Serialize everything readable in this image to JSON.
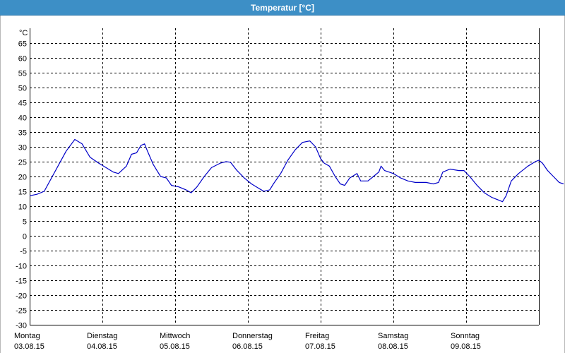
{
  "window": {
    "title": "Temperatur [°C]"
  },
  "colors": {
    "titlebar": "#3d8fc6",
    "line": "#0000c8",
    "grid": "#000000"
  },
  "chart_data": {
    "type": "line",
    "title": "Temperatur [°C]",
    "ylabel": "°C",
    "ylim": [
      -30,
      70
    ],
    "yticks": [
      65,
      60,
      55,
      50,
      45,
      40,
      35,
      30,
      25,
      20,
      15,
      10,
      5,
      0,
      -5,
      -10,
      -15,
      -20,
      -25,
      -30
    ],
    "xlim": [
      0,
      7
    ],
    "grid": true,
    "days": [
      {
        "name": "Montag",
        "date": "03.08.15"
      },
      {
        "name": "Dienstag",
        "date": "04.08.15"
      },
      {
        "name": "Mittwoch",
        "date": "05.08.15"
      },
      {
        "name": "Donnerstag",
        "date": "06.08.15"
      },
      {
        "name": "Freitag",
        "date": "07.08.15"
      },
      {
        "name": "Samstag",
        "date": "08.08.15"
      },
      {
        "name": "Sonntag",
        "date": "09.08.15"
      }
    ],
    "series": [
      {
        "points": [
          [
            0.0,
            13.5
          ],
          [
            0.1,
            14.0
          ],
          [
            0.2,
            15.0
          ],
          [
            0.3,
            19.5
          ],
          [
            0.4,
            24.0
          ],
          [
            0.5,
            28.5
          ],
          [
            0.62,
            32.5
          ],
          [
            0.72,
            31.0
          ],
          [
            0.83,
            26.5
          ],
          [
            0.95,
            24.5
          ],
          [
            1.05,
            23.0
          ],
          [
            1.15,
            21.5
          ],
          [
            1.22,
            21.0
          ],
          [
            1.33,
            23.5
          ],
          [
            1.4,
            27.5
          ],
          [
            1.47,
            28.0
          ],
          [
            1.53,
            30.5
          ],
          [
            1.58,
            31.0
          ],
          [
            1.62,
            28.5
          ],
          [
            1.7,
            24.0
          ],
          [
            1.8,
            20.0
          ],
          [
            1.88,
            19.5
          ],
          [
            1.95,
            17.0
          ],
          [
            2.05,
            16.5
          ],
          [
            2.15,
            15.5
          ],
          [
            2.22,
            14.5
          ],
          [
            2.3,
            16.5
          ],
          [
            2.4,
            20.0
          ],
          [
            2.5,
            23.0
          ],
          [
            2.62,
            24.5
          ],
          [
            2.7,
            25.0
          ],
          [
            2.76,
            24.8
          ],
          [
            2.85,
            22.0
          ],
          [
            2.95,
            19.5
          ],
          [
            3.05,
            17.5
          ],
          [
            3.15,
            16.0
          ],
          [
            3.22,
            15.0
          ],
          [
            3.3,
            15.5
          ],
          [
            3.35,
            17.5
          ],
          [
            3.45,
            21.0
          ],
          [
            3.55,
            25.5
          ],
          [
            3.65,
            29.0
          ],
          [
            3.75,
            31.5
          ],
          [
            3.85,
            32.0
          ],
          [
            3.93,
            30.0
          ],
          [
            4.0,
            26.0
          ],
          [
            4.05,
            24.5
          ],
          [
            4.12,
            23.5
          ],
          [
            4.2,
            20.0
          ],
          [
            4.27,
            17.5
          ],
          [
            4.33,
            17.0
          ],
          [
            4.4,
            19.5
          ],
          [
            4.5,
            21.0
          ],
          [
            4.55,
            18.5
          ],
          [
            4.65,
            18.5
          ],
          [
            4.75,
            20.5
          ],
          [
            4.8,
            21.5
          ],
          [
            4.83,
            23.5
          ],
          [
            4.88,
            22.0
          ],
          [
            5.0,
            21.0
          ],
          [
            5.1,
            19.5
          ],
          [
            5.2,
            18.5
          ],
          [
            5.3,
            18.0
          ],
          [
            5.45,
            18.0
          ],
          [
            5.55,
            17.5
          ],
          [
            5.62,
            18.0
          ],
          [
            5.68,
            21.5
          ],
          [
            5.78,
            22.5
          ],
          [
            5.9,
            22.0
          ],
          [
            5.97,
            22.0
          ],
          [
            6.05,
            20.0
          ],
          [
            6.15,
            17.0
          ],
          [
            6.25,
            14.5
          ],
          [
            6.35,
            13.0
          ],
          [
            6.45,
            12.0
          ],
          [
            6.5,
            11.5
          ],
          [
            6.55,
            13.5
          ],
          [
            6.62,
            18.5
          ],
          [
            6.72,
            21.0
          ],
          [
            6.85,
            23.5
          ],
          [
            6.95,
            25.0
          ],
          [
            7.0,
            25.5
          ],
          [
            7.05,
            24.5
          ],
          [
            7.12,
            22.0
          ],
          [
            7.2,
            20.0
          ],
          [
            7.28,
            18.0
          ],
          [
            7.34,
            17.5
          ]
        ]
      }
    ]
  }
}
